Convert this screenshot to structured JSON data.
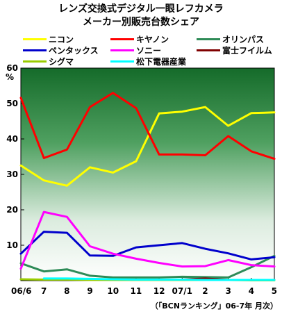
{
  "title": {
    "line1": "レンズ交換式デジタル一眼レフカメラ",
    "line2": "メーカー別販売台数シェア"
  },
  "footnote": "（「BCNランキング」06-7年 月次）",
  "colors": {
    "nikon": "#ffff00",
    "canon": "#ff0000",
    "olympus": "#2e8b57",
    "pentax": "#0000cc",
    "sony": "#ff00ff",
    "fujifilm": "#800000",
    "sigma": "#99cc00",
    "panasonic": "#00ffff"
  },
  "chart_data": {
    "type": "line",
    "categories": [
      "06/6",
      "7",
      "8",
      "9",
      "10",
      "11",
      "12",
      "07/1",
      "2",
      "3",
      "4",
      "5"
    ],
    "ylabel": "%",
    "ylim": [
      0,
      60
    ],
    "yticks": [
      10,
      20,
      30,
      40,
      50,
      60
    ],
    "grid": false,
    "legend_position": "top",
    "series": [
      {
        "name": "ニコン",
        "color": "#ffff00",
        "values": [
          32.5,
          28.3,
          26.8,
          32.0,
          30.5,
          33.7,
          47.2,
          47.7,
          49.0,
          43.7,
          47.3,
          47.5
        ]
      },
      {
        "name": "キヤノン",
        "color": "#ff0000",
        "values": [
          51.6,
          34.6,
          37.0,
          49.0,
          53.0,
          48.7,
          35.6,
          35.6,
          35.4,
          40.8,
          36.5,
          34.4
        ]
      },
      {
        "name": "オリンパス",
        "color": "#2e8b57",
        "values": [
          4.9,
          2.6,
          3.2,
          1.4,
          0.9,
          0.9,
          0.9,
          1.1,
          1.0,
          0.9,
          3.8,
          7.0
        ]
      },
      {
        "name": "ペンタックス",
        "color": "#0000cc",
        "values": [
          7.6,
          13.8,
          13.5,
          7.1,
          7.0,
          9.4,
          10.0,
          10.6,
          9.0,
          7.7,
          6.0,
          6.6
        ]
      },
      {
        "name": "ソニー",
        "color": "#ff00ff",
        "values": [
          3.4,
          19.4,
          18.0,
          9.7,
          7.6,
          6.2,
          5.0,
          4.0,
          4.1,
          5.8,
          4.4,
          4.0
        ]
      },
      {
        "name": "富士フイルム",
        "color": "#800000",
        "values": [
          null,
          null,
          null,
          null,
          null,
          null,
          null,
          0.3,
          0.6,
          0.2,
          0.2,
          0.2
        ]
      },
      {
        "name": "シグマ",
        "color": "#99cc00",
        "values": [
          0.4,
          0.3,
          0.3,
          0.2,
          0.2,
          0.2,
          0.2,
          0.2,
          0.2,
          0.2,
          0.1,
          0.1
        ]
      },
      {
        "name": "松下電器産業",
        "color": "#00ffff",
        "values": [
          null,
          0.6,
          0.6,
          0.5,
          0.4,
          0.3,
          0.3,
          0.3,
          0.2,
          0.2,
          0.2,
          0.2
        ]
      }
    ]
  }
}
